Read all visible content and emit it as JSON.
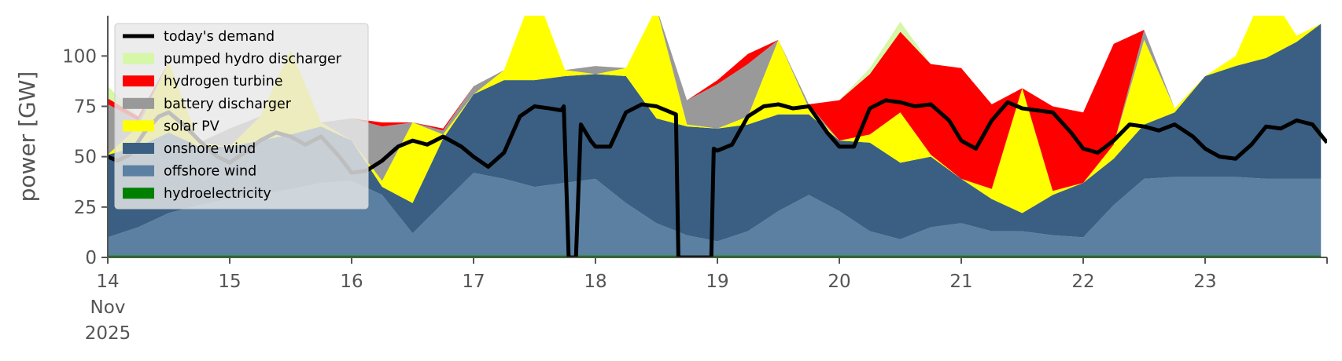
{
  "chart_data": {
    "type": "area",
    "ylabel": "power [GW]",
    "ylim": [
      0,
      120
    ],
    "yticks": [
      0,
      25,
      50,
      75,
      100
    ],
    "yticklabels": [
      "0",
      "25",
      "50",
      "75",
      "100"
    ],
    "xlim": [
      14,
      24
    ],
    "xticks": [
      14,
      15,
      16,
      17,
      18,
      19,
      20,
      21,
      22,
      23
    ],
    "xticklabels": [
      "14\nNov\n2025",
      "15",
      "16",
      "17",
      "18",
      "19",
      "20",
      "21",
      "22",
      "23"
    ],
    "legend_position": "top-left",
    "grid": false,
    "x": [
      14.0,
      14.25,
      14.5,
      14.75,
      15.0,
      15.25,
      15.5,
      15.75,
      16.0,
      16.25,
      16.5,
      16.75,
      17.0,
      17.25,
      17.5,
      17.75,
      18.0,
      18.25,
      18.5,
      18.75,
      19.0,
      19.25,
      19.5,
      19.75,
      20.0,
      20.25,
      20.5,
      20.75,
      21.0,
      21.25,
      21.5,
      21.75,
      22.0,
      22.25,
      22.5,
      22.75,
      23.0,
      23.25,
      23.5,
      23.75,
      23.95
    ],
    "series": [
      {
        "name": "hydroelectricity",
        "color": "#008000",
        "values": [
          1,
          1,
          1,
          1,
          1,
          1,
          1,
          1,
          1,
          1,
          1,
          1,
          1,
          1,
          1,
          1,
          1,
          1,
          1,
          1,
          1,
          1,
          1,
          1,
          1,
          1,
          1,
          1,
          1,
          1,
          1,
          1,
          1,
          1,
          1,
          1,
          1,
          1,
          1,
          1,
          1
        ]
      },
      {
        "name": "offshore wind",
        "color": "#5b80a2",
        "values": [
          9,
          14,
          21,
          25,
          28,
          30,
          33,
          36,
          37,
          30,
          11,
          26,
          41,
          38,
          34,
          36,
          38,
          26,
          16,
          10,
          7,
          12,
          22,
          30,
          22,
          12,
          8,
          14,
          16,
          12,
          12,
          10,
          9,
          25,
          38,
          39,
          39,
          39,
          38,
          38,
          38
        ]
      },
      {
        "name": "onshore wind",
        "color": "#3a5f82",
        "values": [
          41,
          40,
          40,
          29,
          26,
          27,
          27,
          28,
          20,
          4,
          15,
          32,
          39,
          49,
          53,
          53,
          52,
          63,
          52,
          54,
          56,
          53,
          48,
          40,
          35,
          44,
          38,
          35,
          22,
          16,
          9,
          20,
          27,
          23,
          27,
          32,
          50,
          55,
          60,
          68,
          77
        ]
      },
      {
        "name": "solar PV",
        "color": "#ffff00",
        "values": [
          0,
          10,
          35,
          2,
          0,
          12,
          42,
          2,
          0,
          3,
          40,
          2,
          0,
          5,
          45,
          3,
          0,
          4,
          55,
          1,
          0,
          4,
          37,
          3,
          0,
          4,
          25,
          1,
          0,
          5,
          62,
          2,
          0,
          7,
          42,
          2,
          0,
          5,
          35,
          3,
          0
        ]
      },
      {
        "name": "battery discharger",
        "color": "#999999",
        "values": [
          25,
          3,
          0,
          0,
          9,
          0,
          0,
          0,
          11,
          27,
          0,
          2,
          4,
          0,
          0,
          0,
          4,
          0,
          0,
          12,
          22,
          26,
          0,
          2,
          0,
          0,
          0,
          0,
          0,
          0,
          0,
          0,
          0,
          0,
          5,
          0,
          0,
          0,
          0,
          0,
          0
        ]
      },
      {
        "name": "hydrogen turbine",
        "color": "#ff0000",
        "values": [
          3,
          2,
          0,
          0,
          0,
          0,
          0,
          0,
          0,
          2,
          0,
          1,
          0,
          0,
          0,
          0,
          0,
          0,
          0,
          0,
          2,
          5,
          0,
          0,
          20,
          30,
          40,
          45,
          55,
          42,
          0,
          42,
          35,
          50,
          0,
          0,
          0,
          0,
          0,
          0,
          0
        ]
      },
      {
        "name": "pumped hydro discharger",
        "color": "#d6f7a7",
        "values": [
          6,
          0,
          0,
          0,
          0,
          0,
          0,
          0,
          0,
          0,
          0,
          0,
          0,
          0,
          0,
          0,
          0,
          0,
          0,
          0,
          0,
          0,
          0,
          0,
          0,
          3,
          5,
          0,
          0,
          0,
          0,
          0,
          0,
          0,
          0,
          0,
          0,
          0,
          0,
          0,
          0
        ]
      }
    ],
    "demand": {
      "name": "today's demand",
      "color": "#000000",
      "x": [
        14.0,
        14.08,
        14.18,
        14.3,
        14.42,
        14.5,
        14.62,
        14.75,
        14.9,
        15.0,
        15.12,
        15.25,
        15.38,
        15.5,
        15.62,
        15.75,
        15.9,
        16.0,
        16.12,
        16.25,
        16.38,
        16.5,
        16.62,
        16.75,
        16.9,
        17.0,
        17.12,
        17.25,
        17.38,
        17.5,
        17.62,
        17.72,
        17.74,
        17.78,
        17.84,
        17.88,
        17.96,
        18.0,
        18.12,
        18.25,
        18.38,
        18.5,
        18.62,
        18.66,
        18.68,
        18.95,
        18.97,
        19.0,
        19.12,
        19.25,
        19.38,
        19.5,
        19.62,
        19.75,
        19.9,
        20.0,
        20.12,
        20.25,
        20.38,
        20.5,
        20.62,
        20.75,
        20.9,
        21.0,
        21.12,
        21.25,
        21.38,
        21.5,
        21.62,
        21.75,
        21.9,
        22.0,
        22.12,
        22.25,
        22.38,
        22.5,
        22.62,
        22.75,
        22.9,
        23.0,
        23.12,
        23.25,
        23.38,
        23.5,
        23.62,
        23.75,
        23.88,
        24.0
      ],
      "values": [
        50,
        48,
        51,
        62,
        70,
        72,
        66,
        58,
        50,
        47,
        52,
        58,
        62,
        60,
        56,
        60,
        50,
        42,
        43,
        48,
        55,
        58,
        56,
        60,
        55,
        50,
        45,
        52,
        70,
        75,
        74,
        73,
        75,
        0,
        0,
        66,
        58,
        55,
        55,
        72,
        76,
        75,
        72,
        71,
        0,
        0,
        54,
        53,
        56,
        70,
        75,
        76,
        74,
        75,
        62,
        55,
        55,
        74,
        78,
        77,
        75,
        76,
        68,
        58,
        54,
        68,
        77,
        74,
        73,
        72,
        62,
        54,
        52,
        58,
        66,
        65,
        63,
        66,
        60,
        54,
        50,
        49,
        56,
        65,
        64,
        68,
        66,
        57
      ]
    }
  }
}
